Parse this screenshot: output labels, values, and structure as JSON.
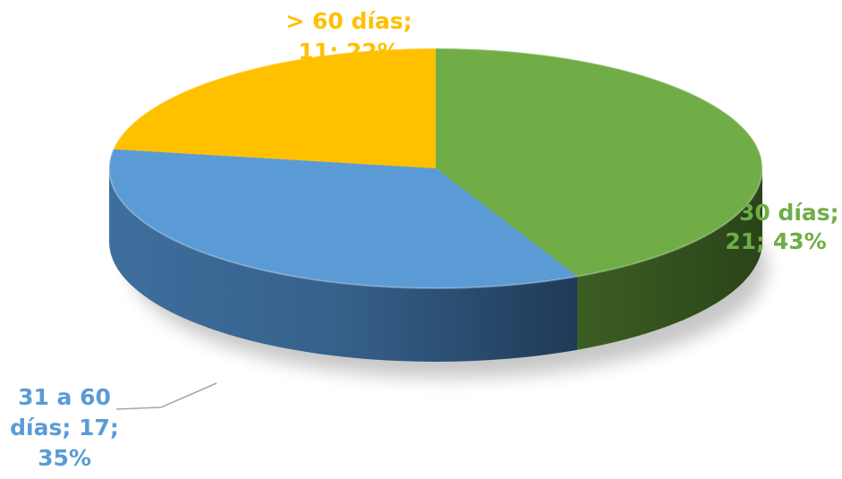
{
  "chart_data": {
    "type": "pie",
    "style": "3d",
    "title": "",
    "legend": "none",
    "slices": [
      {
        "label": "≤ 30 días",
        "value": 21,
        "percent": 43,
        "color": "#70AD47",
        "label_lines": [
          "≤ 30 días;",
          "21; 43%"
        ]
      },
      {
        "label": "31 a 60 días",
        "value": 17,
        "percent": 35,
        "color": "#5B9BD5",
        "label_lines": [
          "31 a 60",
          "días; 17;",
          "35%"
        ]
      },
      {
        "label": "> 60 días",
        "value": 11,
        "percent": 22,
        "color": "#FFC000",
        "label_lines": [
          "> 60 días;",
          "11; 22%"
        ]
      }
    ]
  }
}
